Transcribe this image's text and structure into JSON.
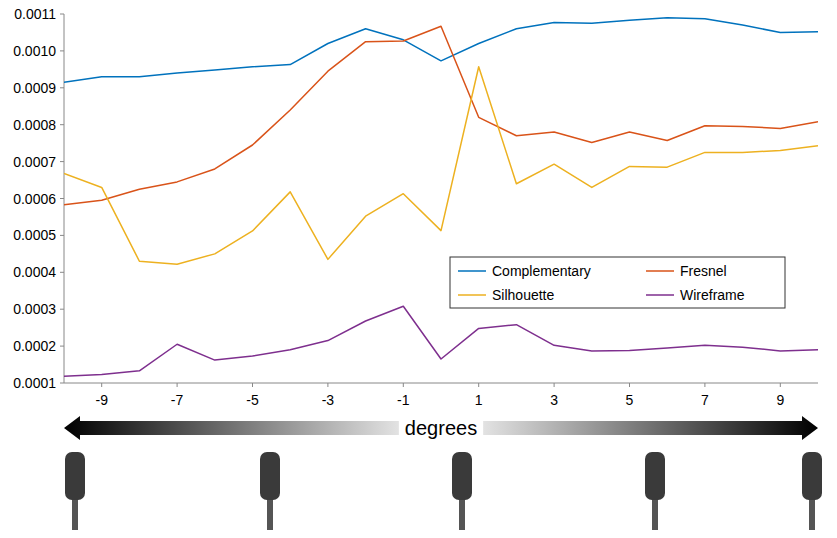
{
  "chart_data": {
    "type": "line",
    "x_label": "degrees",
    "x": [
      -10,
      -9,
      -8,
      -7,
      -6,
      -5,
      -4,
      -3,
      -2,
      -1,
      0,
      1,
      2,
      3,
      4,
      5,
      6,
      7,
      8,
      9,
      10
    ],
    "xlim": [
      -10,
      10
    ],
    "xticks": [
      -9,
      -7,
      -5,
      -3,
      -1,
      1,
      3,
      5,
      7,
      9
    ],
    "ylim": [
      0.0001,
      0.0011
    ],
    "yticks": [
      0.0001,
      0.0002,
      0.0003,
      0.0004,
      0.0005,
      0.0006,
      0.0007,
      0.0008,
      0.0009,
      {
        "value": 0.001,
        "label": "0.0010"
      },
      0.0011
    ],
    "grid": false,
    "legend": "right",
    "series": [
      {
        "name": "Complementary",
        "color": "#0072bd",
        "values": [
          0.000915,
          0.00093,
          0.00093,
          0.00094,
          0.000948,
          0.000957,
          0.000963,
          0.00102,
          0.00106,
          0.00103,
          0.000973,
          0.00102,
          0.00106,
          0.001077,
          0.001075,
          0.001083,
          0.00109,
          0.001087,
          0.00107,
          0.00105,
          0.001052
        ]
      },
      {
        "name": "Fresnel",
        "color": "#d95319",
        "values": [
          0.000583,
          0.000595,
          0.000625,
          0.000645,
          0.00068,
          0.000745,
          0.00084,
          0.000945,
          0.001025,
          0.001027,
          0.001067,
          0.00082,
          0.00077,
          0.00078,
          0.000752,
          0.00078,
          0.000757,
          0.000797,
          0.000795,
          0.00079,
          0.000808
        ]
      },
      {
        "name": "Silhouette",
        "color": "#edb120",
        "values": [
          0.000668,
          0.00063,
          0.00043,
          0.000422,
          0.00045,
          0.000512,
          0.000618,
          0.000435,
          0.000552,
          0.000613,
          0.000513,
          0.000957,
          0.00064,
          0.000693,
          0.00063,
          0.000687,
          0.000685,
          0.000725,
          0.000725,
          0.00073,
          0.000743
        ]
      },
      {
        "name": "Wireframe",
        "color": "#7e2f8e",
        "values": [
          0.000118,
          0.000123,
          0.000133,
          0.000205,
          0.000162,
          0.000173,
          0.00019,
          0.000215,
          0.000268,
          0.000308,
          0.000165,
          0.000248,
          0.000258,
          0.000202,
          0.000187,
          0.000188,
          0.000195,
          0.000202,
          0.000197,
          0.000187,
          0.00019
        ]
      }
    ]
  }
}
